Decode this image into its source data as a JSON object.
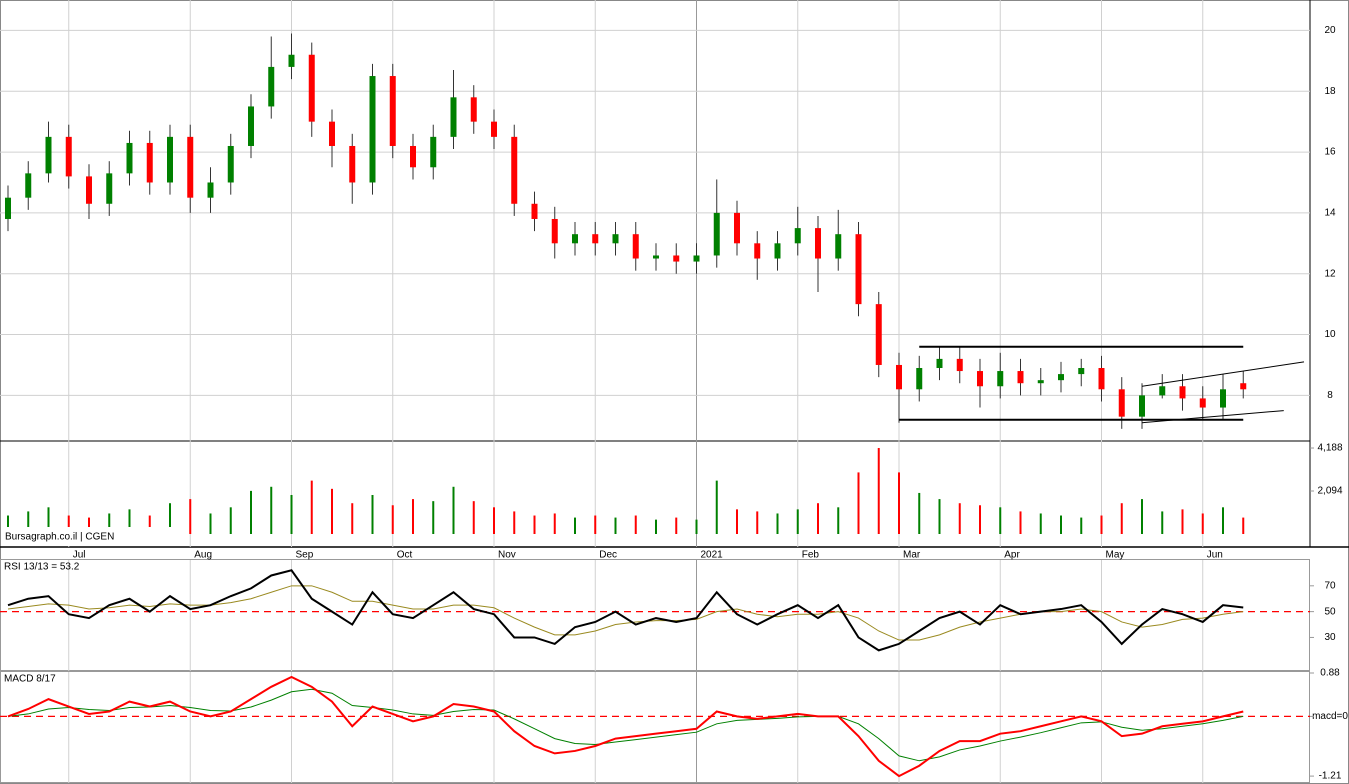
{
  "chart_data": [
    {
      "type": "candlestick",
      "categories": [
        null,
        null,
        null,
        "Jul",
        null,
        null,
        null,
        null,
        null,
        "Aug",
        null,
        null,
        null,
        null,
        "Sep",
        null,
        null,
        null,
        null,
        "Oct",
        null,
        null,
        null,
        null,
        "Nov",
        null,
        null,
        null,
        null,
        "Dec",
        null,
        null,
        null,
        null,
        "2021",
        null,
        null,
        null,
        null,
        "Feb",
        null,
        null,
        null,
        null,
        "Mar",
        null,
        null,
        null,
        null,
        "Apr",
        null,
        null,
        null,
        null,
        "May",
        null,
        null,
        null,
        null,
        "Jun",
        null,
        null
      ],
      "open": [
        13.8,
        14.5,
        15.3,
        16.5,
        15.2,
        14.3,
        15.3,
        16.3,
        15.0,
        16.5,
        14.5,
        15.0,
        16.2,
        17.5,
        18.8,
        19.2,
        17.0,
        16.2,
        15.0,
        18.5,
        16.2,
        15.5,
        16.5,
        17.8,
        17.0,
        16.5,
        14.3,
        13.8,
        13.0,
        13.3,
        13.0,
        13.3,
        12.5,
        12.6,
        12.4,
        12.6,
        14.0,
        13.0,
        12.5,
        13.0,
        13.5,
        12.5,
        13.3,
        11.0,
        9.0,
        8.2,
        8.9,
        9.2,
        8.8,
        8.3,
        8.8,
        8.4,
        8.5,
        8.7,
        8.9,
        8.2,
        7.3,
        8.0,
        8.3,
        7.9,
        7.6,
        8.4
      ],
      "high": [
        14.9,
        15.7,
        17.0,
        16.9,
        15.6,
        15.7,
        16.7,
        16.7,
        16.9,
        16.9,
        15.5,
        16.6,
        17.9,
        19.8,
        19.9,
        19.6,
        17.4,
        16.6,
        18.9,
        18.9,
        16.6,
        16.9,
        18.7,
        18.2,
        17.4,
        16.9,
        14.7,
        14.2,
        13.7,
        13.7,
        13.7,
        13.7,
        13.0,
        13.0,
        13.0,
        15.1,
        14.4,
        13.4,
        13.4,
        14.2,
        13.9,
        14.1,
        13.7,
        11.4,
        9.4,
        9.3,
        9.6,
        9.6,
        9.2,
        9.4,
        9.2,
        8.9,
        9.1,
        9.2,
        9.3,
        8.6,
        8.4,
        8.7,
        8.7,
        8.3,
        8.7,
        8.8
      ],
      "low": [
        13.4,
        14.1,
        15.0,
        14.8,
        13.8,
        13.9,
        14.9,
        14.6,
        14.6,
        14.0,
        14.0,
        14.6,
        15.8,
        17.1,
        18.4,
        16.5,
        15.5,
        14.3,
        14.6,
        15.8,
        15.1,
        15.1,
        16.1,
        16.6,
        16.1,
        13.9,
        13.4,
        12.5,
        12.6,
        12.6,
        12.6,
        12.1,
        12.1,
        12.0,
        12.0,
        12.2,
        12.6,
        11.8,
        12.1,
        12.6,
        11.4,
        12.1,
        10.6,
        8.6,
        7.1,
        7.8,
        8.5,
        8.4,
        7.6,
        7.9,
        8.0,
        8.0,
        8.1,
        8.3,
        7.8,
        6.9,
        6.9,
        7.9,
        7.5,
        7.2,
        7.2,
        7.9
      ],
      "close": [
        14.5,
        15.3,
        16.5,
        15.2,
        14.3,
        15.3,
        16.3,
        15.0,
        16.5,
        14.5,
        15.0,
        16.2,
        17.5,
        18.8,
        19.2,
        17.0,
        16.2,
        15.0,
        18.5,
        16.2,
        15.5,
        16.5,
        17.8,
        17.0,
        16.5,
        14.3,
        13.8,
        13.0,
        13.3,
        13.0,
        13.3,
        12.5,
        12.6,
        12.4,
        12.6,
        14.0,
        13.0,
        12.5,
        13.0,
        13.5,
        12.5,
        13.3,
        11.0,
        9.0,
        8.2,
        8.9,
        9.2,
        8.8,
        8.3,
        8.8,
        8.4,
        8.5,
        8.7,
        8.9,
        8.2,
        7.3,
        8.0,
        8.3,
        7.9,
        7.6,
        8.2,
        8.2
      ],
      "up_color": "#008000",
      "down_color": "#ff0000",
      "ylim": [
        6.5,
        21
      ],
      "yticks": [
        8,
        10,
        12,
        14,
        16,
        18,
        20
      ],
      "grid": true,
      "trendlines": [
        {
          "x": [
            45,
            61
          ],
          "y": [
            9.6,
            9.6
          ]
        },
        {
          "x": [
            44,
            61
          ],
          "y": [
            7.2,
            7.2
          ]
        },
        {
          "x": [
            56,
            64
          ],
          "y": [
            8.3,
            9.1
          ]
        },
        {
          "x": [
            56,
            63
          ],
          "y": [
            7.1,
            7.5
          ]
        }
      ],
      "trendline_color": "#000000"
    },
    {
      "type": "bar",
      "source": "Bursagraph.co.il | CGEN",
      "values": [
        900,
        1100,
        1300,
        900,
        800,
        1000,
        1200,
        900,
        1500,
        1700,
        1000,
        1300,
        2100,
        2300,
        1900,
        2600,
        2200,
        1500,
        1900,
        1400,
        1700,
        1600,
        2300,
        1600,
        1300,
        1100,
        900,
        1000,
        800,
        900,
        800,
        900,
        700,
        800,
        700,
        2600,
        1200,
        1100,
        1000,
        1200,
        1500,
        1300,
        3000,
        4188,
        3000,
        2000,
        1700,
        1500,
        1400,
        1300,
        1100,
        1000,
        900,
        800,
        900,
        1500,
        1700,
        1100,
        1200,
        1000,
        1300,
        800
      ],
      "ylim": [
        0,
        4530
      ],
      "yticks": [
        {
          "value": 2094,
          "label": "2,094"
        },
        {
          "value": 4188,
          "label": "4,188"
        }
      ],
      "grid": false
    },
    {
      "type": "line",
      "title": "RSI 13/13 = 53.2",
      "series": [
        {
          "color": "#000000",
          "values": [
            55,
            60,
            62,
            48,
            45,
            55,
            60,
            50,
            62,
            52,
            55,
            62,
            68,
            78,
            82,
            60,
            50,
            40,
            65,
            48,
            45,
            55,
            65,
            52,
            48,
            30,
            30,
            25,
            38,
            42,
            50,
            40,
            45,
            42,
            45,
            65,
            48,
            40,
            48,
            55,
            45,
            55,
            30,
            20,
            25,
            35,
            45,
            50,
            40,
            55,
            48,
            50,
            52,
            55,
            42,
            25,
            40,
            52,
            48,
            42,
            55,
            53.2
          ]
        },
        {
          "color": "#9a8a20",
          "values": [
            52,
            54,
            56,
            55,
            52,
            53,
            55,
            54,
            56,
            55,
            55,
            57,
            60,
            65,
            70,
            70,
            65,
            58,
            58,
            55,
            52,
            52,
            55,
            55,
            53,
            45,
            38,
            32,
            32,
            35,
            40,
            42,
            43,
            43,
            44,
            50,
            52,
            48,
            46,
            48,
            48,
            50,
            45,
            35,
            28,
            28,
            32,
            38,
            42,
            45,
            48,
            50,
            50,
            52,
            50,
            42,
            38,
            40,
            44,
            45,
            48,
            50
          ]
        }
      ],
      "ylim": [
        4,
        90
      ],
      "yticks": [
        30,
        50,
        70
      ],
      "ref_line": 50,
      "ref_color": "#ff0000"
    },
    {
      "type": "line",
      "title": "MACD 8/17",
      "series": [
        {
          "color": "#ff0000",
          "values": [
            0.0,
            0.15,
            0.35,
            0.2,
            0.05,
            0.1,
            0.3,
            0.2,
            0.3,
            0.1,
            0.0,
            0.1,
            0.35,
            0.6,
            0.8,
            0.6,
            0.3,
            -0.2,
            0.2,
            0.05,
            -0.1,
            0.0,
            0.25,
            0.2,
            0.1,
            -0.3,
            -0.6,
            -0.75,
            -0.7,
            -0.6,
            -0.45,
            -0.4,
            -0.35,
            -0.3,
            -0.25,
            0.1,
            0.0,
            -0.05,
            0.0,
            0.05,
            0.0,
            0.0,
            -0.4,
            -0.9,
            -1.21,
            -1.0,
            -0.7,
            -0.5,
            -0.5,
            -0.35,
            -0.3,
            -0.2,
            -0.1,
            0.0,
            -0.1,
            -0.4,
            -0.35,
            -0.2,
            -0.15,
            -0.1,
            0.0,
            0.1
          ]
        },
        {
          "color": "#008000",
          "values": [
            0.0,
            0.05,
            0.15,
            0.18,
            0.14,
            0.12,
            0.18,
            0.19,
            0.22,
            0.18,
            0.12,
            0.11,
            0.19,
            0.33,
            0.5,
            0.55,
            0.47,
            0.22,
            0.18,
            0.13,
            0.05,
            0.02,
            0.1,
            0.14,
            0.13,
            -0.05,
            -0.25,
            -0.45,
            -0.55,
            -0.57,
            -0.52,
            -0.47,
            -0.42,
            -0.37,
            -0.32,
            -0.15,
            -0.08,
            -0.06,
            -0.04,
            -0.01,
            0.0,
            0.0,
            -0.15,
            -0.45,
            -0.8,
            -0.9,
            -0.82,
            -0.68,
            -0.6,
            -0.5,
            -0.42,
            -0.33,
            -0.23,
            -0.13,
            -0.11,
            -0.22,
            -0.28,
            -0.25,
            -0.2,
            -0.15,
            -0.08,
            0.0
          ]
        }
      ],
      "ylim": [
        -1.35,
        0.9
      ],
      "yticks": [
        0.88,
        {
          "value": 0,
          "label": "macd=0"
        },
        -1.21
      ],
      "ref_line": 0,
      "ref_color": "#ff0000"
    }
  ]
}
